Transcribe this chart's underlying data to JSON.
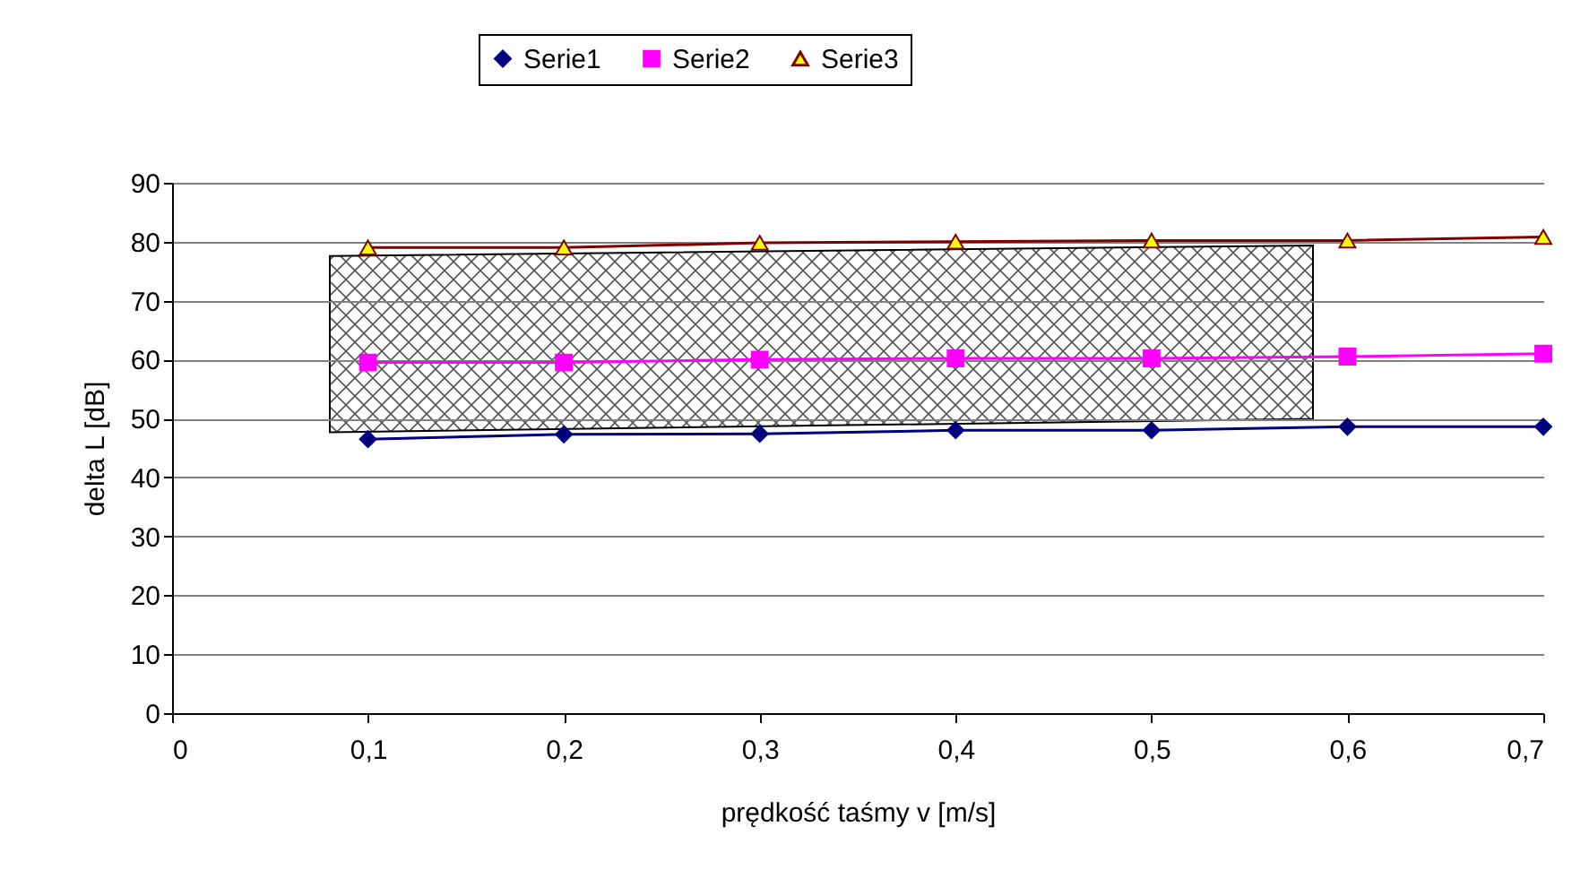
{
  "chart_data": {
    "type": "line",
    "xlabel": "prędkość taśmy v [m/s]",
    "ylabel": "delta L [dB]",
    "x": [
      0.1,
      0.2,
      0.3,
      0.4,
      0.5,
      0.6,
      0.7
    ],
    "series": [
      {
        "name": "Serie1",
        "color": "#000080",
        "marker": "diamond",
        "values": [
          46.5,
          47.3,
          47.4,
          48,
          48,
          48.6,
          48.6
        ]
      },
      {
        "name": "Serie2",
        "color": "#ff00ff",
        "marker": "square",
        "values": [
          59.5,
          59.5,
          60,
          60.2,
          60.2,
          60.5,
          61
        ]
      },
      {
        "name": "Serie3",
        "color": "#800000",
        "marker": "triangle",
        "values": [
          79,
          79,
          79.8,
          80,
          80.2,
          80.2,
          80.8
        ]
      }
    ],
    "xlim": [
      0,
      0.7
    ],
    "xticks": [
      0,
      {
        "value": 0.1,
        "label": "0,1"
      },
      {
        "value": 0.2,
        "label": "0,2"
      },
      {
        "value": 0.3,
        "label": "0,3"
      },
      {
        "value": 0.4,
        "label": "0,4"
      },
      {
        "value": 0.5,
        "label": "0,5"
      },
      {
        "value": 0.6,
        "label": "0,6"
      },
      {
        "value": 0.7,
        "label": "0,7"
      }
    ],
    "ylim": [
      0,
      90
    ],
    "yticks": [
      0,
      10,
      20,
      30,
      40,
      50,
      60,
      70,
      80,
      90
    ],
    "grid": "y",
    "legend": "top",
    "line_style": "solid"
  }
}
